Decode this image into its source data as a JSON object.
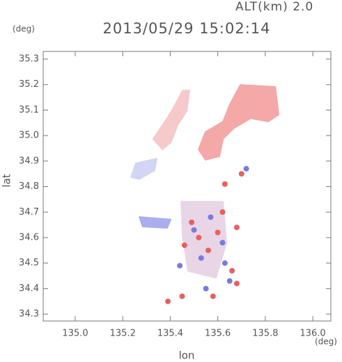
{
  "chart_data": {
    "type": "map",
    "title": "2013/05/29 15:02:14",
    "subtitle": "ALT(km) 2.0",
    "y_unit": "(deg)",
    "x_unit": "(deg)",
    "xlabel": "lon",
    "ylabel": "lat",
    "xlim": [
      134.865,
      136.076
    ],
    "ylim": [
      34.273,
      35.33
    ],
    "xticks": [
      {
        "value": 135.0,
        "label": "135.0"
      },
      135.2,
      135.4,
      135.6,
      135.8,
      {
        "value": 136.0,
        "label": "136.0"
      }
    ],
    "yticks": [
      34.3,
      34.4,
      34.5,
      34.6,
      34.7,
      34.8,
      34.9,
      {
        "value": 35.0,
        "label": "35.0"
      },
      35.1,
      35.2,
      35.3
    ],
    "regions": [
      {
        "color": "#f4a8a8",
        "x": [
          135.695,
          135.842,
          135.856,
          135.812,
          135.739,
          135.666,
          135.622,
          135.607,
          135.548,
          135.519,
          135.548,
          135.622,
          135.651
        ],
        "y": [
          35.199,
          35.191,
          35.082,
          35.055,
          35.068,
          35.028,
          34.987,
          34.919,
          34.905,
          34.946,
          35.014,
          35.055,
          35.123
        ]
      },
      {
        "color": "#f6caca",
        "x": [
          135.452,
          135.481,
          135.469,
          135.431,
          135.402,
          135.367,
          135.328,
          135.387,
          135.422
        ],
        "y": [
          35.177,
          35.177,
          35.096,
          35.041,
          34.973,
          34.946,
          34.987,
          35.068,
          35.123
        ]
      },
      {
        "color": "#d2d6f4",
        "x": [
          135.255,
          135.343,
          135.334,
          135.27,
          135.235
        ],
        "y": [
          34.891,
          34.91,
          34.864,
          34.829,
          34.837
        ]
      },
      {
        "color": "#aaaeec",
        "x": [
          135.27,
          135.402,
          135.387,
          135.284
        ],
        "y": [
          34.681,
          34.671,
          34.638,
          34.643
        ]
      },
      {
        "color": "#e8d6e6",
        "x": [
          135.446,
          135.622,
          135.636,
          135.592,
          135.475,
          135.452
        ],
        "y": [
          34.741,
          34.741,
          34.578,
          34.442,
          34.469,
          34.605
        ]
      }
    ],
    "points": [
      {
        "color": "#e86060",
        "x": [
          135.63,
          135.49,
          135.6,
          135.66,
          135.56,
          135.52,
          135.68,
          135.62,
          135.7,
          135.46,
          135.58,
          135.68,
          135.39,
          135.45
        ],
        "y": [
          34.81,
          34.66,
          34.62,
          34.47,
          34.55,
          34.6,
          34.64,
          34.7,
          34.85,
          34.57,
          34.37,
          34.42,
          34.35,
          34.37
        ]
      },
      {
        "color": "#7a7ae0",
        "x": [
          135.57,
          135.53,
          135.62,
          135.55,
          135.65,
          135.5,
          135.63,
          135.44,
          135.72
        ],
        "y": [
          34.68,
          34.52,
          34.58,
          34.4,
          34.43,
          34.63,
          34.5,
          34.49,
          34.87
        ]
      }
    ]
  }
}
